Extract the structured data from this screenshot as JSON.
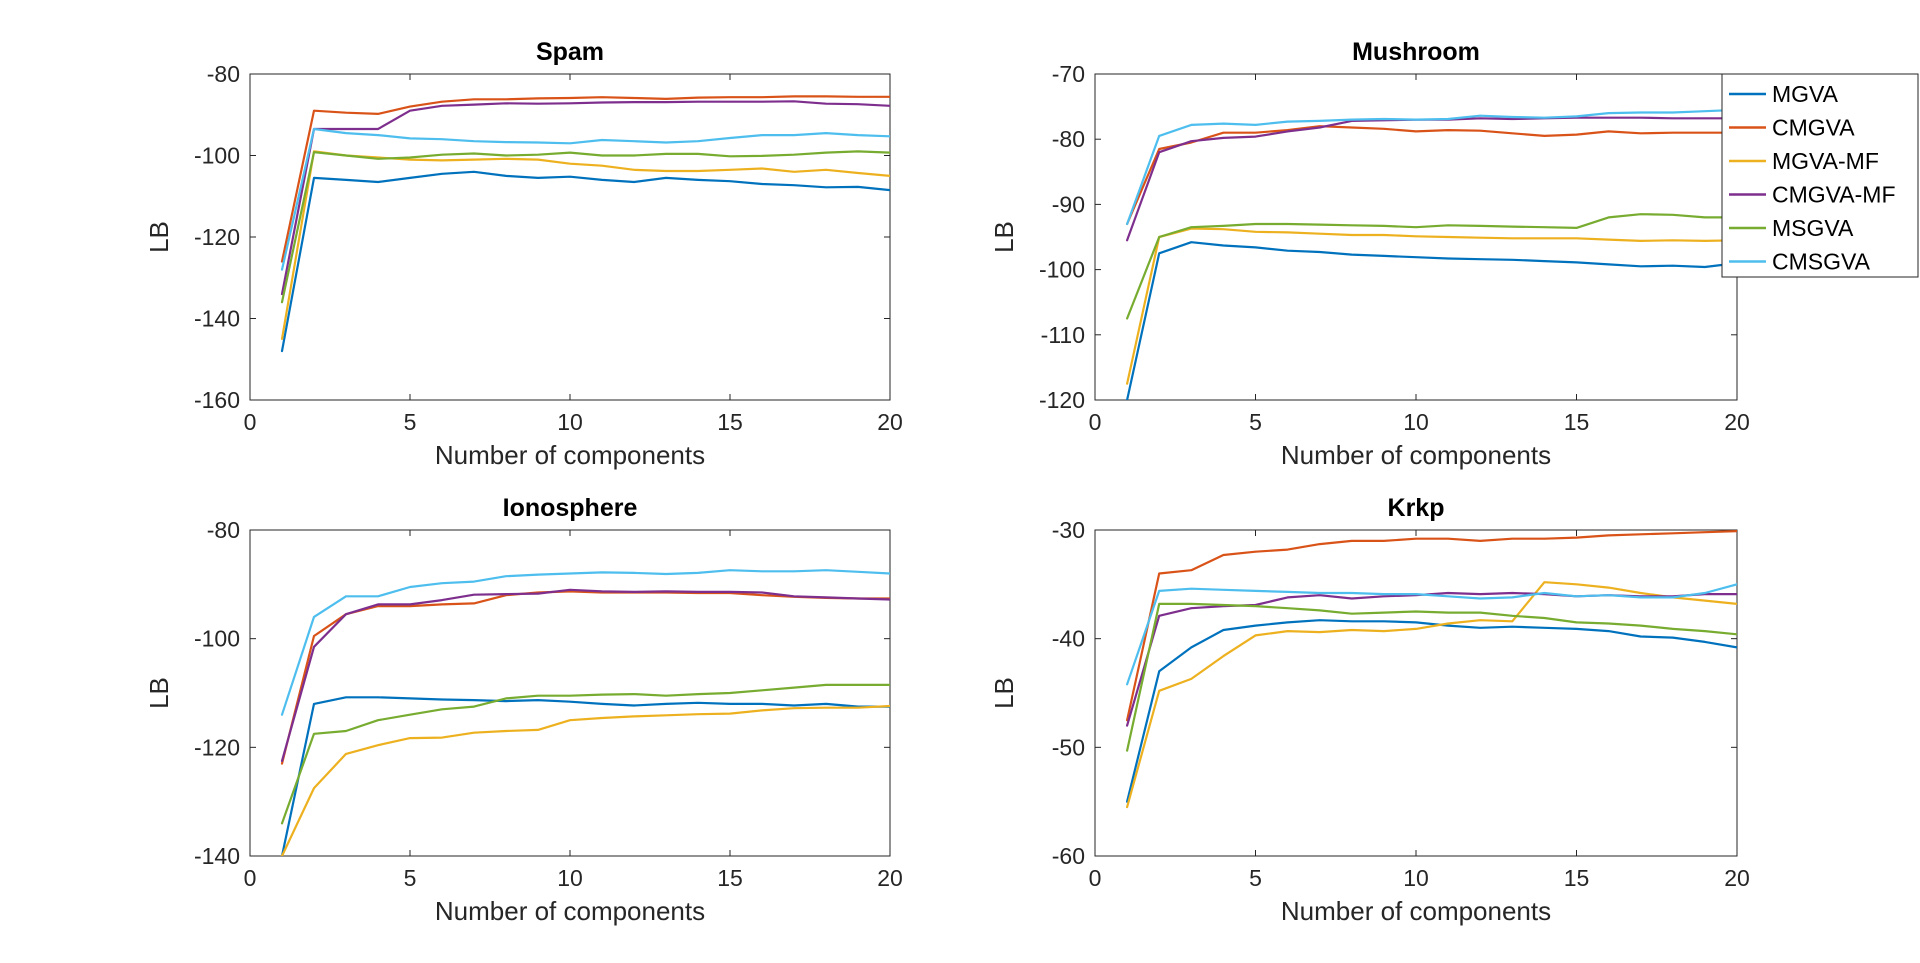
{
  "chart_data": [
    {
      "type": "line",
      "title": "Spam",
      "xlabel": "Number of components",
      "ylabel": "LB",
      "xlim": [
        0,
        20
      ],
      "ylim": [
        -160,
        -80
      ],
      "xticks": [
        0,
        5,
        10,
        15,
        20
      ],
      "yticks": [
        -160,
        -140,
        -120,
        -100,
        -80
      ],
      "x": [
        1,
        2,
        3,
        4,
        5,
        6,
        7,
        8,
        9,
        10,
        11,
        12,
        13,
        14,
        15,
        16,
        17,
        18,
        19,
        20
      ],
      "series": [
        {
          "name": "MGVA",
          "color": "#0072BD",
          "values": [
            -148,
            -105.5,
            -106,
            -106.5,
            -105.5,
            -104.5,
            -104,
            -105,
            -105.5,
            -105.2,
            -106,
            -106.5,
            -105.5,
            -106,
            -106.3,
            -107,
            -107.3,
            -107.8,
            -107.7,
            -108.5
          ]
        },
        {
          "name": "CMGVA",
          "color": "#D95319",
          "values": [
            -126,
            -89,
            -89.5,
            -89.8,
            -88,
            -86.8,
            -86.2,
            -86.2,
            -86,
            -85.9,
            -85.7,
            -85.9,
            -86.1,
            -85.8,
            -85.7,
            -85.7,
            -85.5,
            -85.5,
            -85.6,
            -85.6
          ]
        },
        {
          "name": "MGVA-MF",
          "color": "#EDB120",
          "values": [
            -145,
            -99,
            -100,
            -100.5,
            -101,
            -101.2,
            -101,
            -100.8,
            -101,
            -102,
            -102.5,
            -103.5,
            -103.8,
            -103.8,
            -103.5,
            -103.2,
            -104,
            -103.5,
            -104.3,
            -105
          ]
        },
        {
          "name": "CMGVA-MF",
          "color": "#7E2F8E",
          "values": [
            -134,
            -93.5,
            -93.5,
            -93.5,
            -89,
            -87.8,
            -87.5,
            -87.2,
            -87.3,
            -87.2,
            -87,
            -86.9,
            -86.9,
            -86.8,
            -86.8,
            -86.8,
            -86.7,
            -87.3,
            -87.4,
            -87.8
          ]
        },
        {
          "name": "MSGVA",
          "color": "#77AC30",
          "values": [
            -136,
            -99.2,
            -100,
            -100.8,
            -100.5,
            -99.8,
            -99.5,
            -100,
            -99.8,
            -99.3,
            -100,
            -100,
            -99.6,
            -99.6,
            -100.2,
            -100.1,
            -99.8,
            -99.3,
            -99,
            -99.3
          ]
        },
        {
          "name": "CMSGVA",
          "color": "#4DBEEE",
          "values": [
            -128,
            -93.5,
            -94.5,
            -95,
            -95.8,
            -96,
            -96.5,
            -96.7,
            -96.8,
            -97,
            -96.2,
            -96.5,
            -96.8,
            -96.5,
            -95.7,
            -95,
            -95,
            -94.5,
            -95,
            -95.3
          ]
        }
      ]
    },
    {
      "type": "line",
      "title": "Mushroom",
      "xlabel": "Number of components",
      "ylabel": "LB",
      "xlim": [
        0,
        20
      ],
      "ylim": [
        -120,
        -70
      ],
      "xticks": [
        0,
        5,
        10,
        15,
        20
      ],
      "yticks": [
        -120,
        -110,
        -100,
        -90,
        -80,
        -70
      ],
      "x": [
        1,
        2,
        3,
        4,
        5,
        6,
        7,
        8,
        9,
        10,
        11,
        12,
        13,
        14,
        15,
        16,
        17,
        18,
        19,
        20
      ],
      "series": [
        {
          "name": "MGVA",
          "color": "#0072BD",
          "values": [
            -120,
            -97.5,
            -95.8,
            -96.3,
            -96.6,
            -97.1,
            -97.3,
            -97.7,
            -97.9,
            -98.1,
            -98.3,
            -98.4,
            -98.5,
            -98.7,
            -98.9,
            -99.2,
            -99.5,
            -99.4,
            -99.6,
            -99
          ]
        },
        {
          "name": "CMGVA",
          "color": "#D95319",
          "values": [
            -93,
            -81.5,
            -80.5,
            -79,
            -79,
            -78.6,
            -78,
            -78.2,
            -78.4,
            -78.8,
            -78.6,
            -78.7,
            -79.1,
            -79.5,
            -79.3,
            -78.8,
            -79.1,
            -79,
            -79,
            -79
          ]
        },
        {
          "name": "MGVA-MF",
          "color": "#EDB120",
          "values": [
            -117.5,
            -95,
            -93.7,
            -93.8,
            -94.2,
            -94.3,
            -94.5,
            -94.7,
            -94.7,
            -94.9,
            -95,
            -95.1,
            -95.2,
            -95.2,
            -95.2,
            -95.4,
            -95.6,
            -95.5,
            -95.6,
            -95.5
          ]
        },
        {
          "name": "CMGVA-MF",
          "color": "#7E2F8E",
          "values": [
            -95.5,
            -82,
            -80.3,
            -79.8,
            -79.6,
            -78.8,
            -78.2,
            -77.2,
            -77.1,
            -77,
            -77,
            -76.8,
            -76.9,
            -76.8,
            -76.7,
            -76.7,
            -76.7,
            -76.8,
            -76.8,
            -76.8
          ]
        },
        {
          "name": "MSGVA",
          "color": "#77AC30",
          "values": [
            -107.5,
            -95,
            -93.5,
            -93.3,
            -93,
            -93,
            -93.1,
            -93.2,
            -93.3,
            -93.5,
            -93.2,
            -93.3,
            -93.4,
            -93.5,
            -93.6,
            -92,
            -91.5,
            -91.6,
            -92,
            -92
          ]
        },
        {
          "name": "CMSGVA",
          "color": "#4DBEEE",
          "values": [
            -93,
            -79.5,
            -77.8,
            -77.6,
            -77.8,
            -77.3,
            -77.2,
            -77,
            -76.9,
            -77,
            -76.9,
            -76.4,
            -76.6,
            -76.7,
            -76.5,
            -76,
            -75.9,
            -75.9,
            -75.7,
            -75.5
          ]
        }
      ]
    },
    {
      "type": "line",
      "title": "Ionosphere",
      "xlabel": "Number of components",
      "ylabel": "LB",
      "xlim": [
        0,
        20
      ],
      "ylim": [
        -140,
        -80
      ],
      "xticks": [
        0,
        5,
        10,
        15,
        20
      ],
      "yticks": [
        -140,
        -120,
        -100,
        -80
      ],
      "x": [
        1,
        2,
        3,
        4,
        5,
        6,
        7,
        8,
        9,
        10,
        11,
        12,
        13,
        14,
        15,
        16,
        17,
        18,
        19,
        20
      ],
      "series": [
        {
          "name": "MGVA",
          "color": "#0072BD",
          "values": [
            -140,
            -112,
            -110.8,
            -110.8,
            -111,
            -111.2,
            -111.3,
            -111.5,
            -111.3,
            -111.6,
            -112,
            -112.3,
            -112,
            -111.8,
            -112,
            -112,
            -112.3,
            -112,
            -112.5,
            -112.5
          ]
        },
        {
          "name": "CMGVA",
          "color": "#D95319",
          "values": [
            -123,
            -99.5,
            -95.5,
            -94,
            -94,
            -93.7,
            -93.5,
            -92,
            -91.5,
            -91.3,
            -91.5,
            -91.5,
            -91.5,
            -91.6,
            -91.6,
            -92,
            -92.3,
            -92.5,
            -92.6,
            -92.6
          ]
        },
        {
          "name": "MGVA-MF",
          "color": "#EDB120",
          "values": [
            -140,
            -127.5,
            -121.2,
            -119.6,
            -118.3,
            -118.2,
            -117.3,
            -117,
            -116.8,
            -115,
            -114.6,
            -114.3,
            -114.1,
            -113.9,
            -113.8,
            -113.2,
            -112.8,
            -112.7,
            -112.7,
            -112.4
          ]
        },
        {
          "name": "CMGVA-MF",
          "color": "#7E2F8E",
          "values": [
            -122.5,
            -101.5,
            -95.5,
            -93.7,
            -93.7,
            -92.9,
            -91.9,
            -91.8,
            -91.7,
            -91,
            -91.3,
            -91.4,
            -91.3,
            -91.4,
            -91.4,
            -91.5,
            -92.2,
            -92.4,
            -92.6,
            -92.8
          ]
        },
        {
          "name": "MSGVA",
          "color": "#77AC30",
          "values": [
            -134,
            -117.5,
            -117,
            -115,
            -114,
            -113,
            -112.5,
            -111,
            -110.5,
            -110.5,
            -110.3,
            -110.2,
            -110.5,
            -110.2,
            -110,
            -109.5,
            -109,
            -108.5,
            -108.5,
            -108.5
          ]
        },
        {
          "name": "CMSGVA",
          "color": "#4DBEEE",
          "values": [
            -114,
            -96,
            -92.2,
            -92.2,
            -90.5,
            -89.8,
            -89.5,
            -88.5,
            -88.2,
            -88,
            -87.8,
            -87.9,
            -88.1,
            -87.9,
            -87.4,
            -87.6,
            -87.6,
            -87.4,
            -87.7,
            -88
          ]
        }
      ]
    },
    {
      "type": "line",
      "title": "Krkp",
      "xlabel": "Number of components",
      "ylabel": "LB",
      "xlim": [
        0,
        20
      ],
      "ylim": [
        -60,
        -30
      ],
      "xticks": [
        0,
        5,
        10,
        15,
        20
      ],
      "yticks": [
        -60,
        -50,
        -40,
        -30
      ],
      "x": [
        1,
        2,
        3,
        4,
        5,
        6,
        7,
        8,
        9,
        10,
        11,
        12,
        13,
        14,
        15,
        16,
        17,
        18,
        19,
        20
      ],
      "series": [
        {
          "name": "MGVA",
          "color": "#0072BD",
          "values": [
            -55,
            -43,
            -40.8,
            -39.2,
            -38.8,
            -38.5,
            -38.3,
            -38.4,
            -38.4,
            -38.5,
            -38.8,
            -39,
            -38.9,
            -39,
            -39.1,
            -39.3,
            -39.8,
            -39.9,
            -40.3,
            -40.8
          ]
        },
        {
          "name": "CMGVA",
          "color": "#D95319",
          "values": [
            -47.5,
            -34,
            -33.7,
            -32.3,
            -32,
            -31.8,
            -31.3,
            -31,
            -31,
            -30.8,
            -30.8,
            -31,
            -30.8,
            -30.8,
            -30.7,
            -30.5,
            -30.4,
            -30.3,
            -30.2,
            -30.1
          ]
        },
        {
          "name": "MGVA-MF",
          "color": "#EDB120",
          "values": [
            -55.5,
            -44.8,
            -43.7,
            -41.6,
            -39.7,
            -39.3,
            -39.4,
            -39.2,
            -39.3,
            -39.1,
            -38.6,
            -38.3,
            -38.4,
            -34.8,
            -35,
            -35.3,
            -35.8,
            -36.2,
            -36.5,
            -36.8
          ]
        },
        {
          "name": "CMGVA-MF",
          "color": "#7E2F8E",
          "values": [
            -48,
            -37.9,
            -37.2,
            -37,
            -36.9,
            -36.2,
            -36,
            -36.3,
            -36.1,
            -36,
            -35.8,
            -35.9,
            -35.8,
            -35.9,
            -36.1,
            -36,
            -36.1,
            -36.1,
            -35.9,
            -35.9
          ]
        },
        {
          "name": "MSGVA",
          "color": "#77AC30",
          "values": [
            -50.3,
            -36.8,
            -36.8,
            -36.9,
            -37,
            -37.2,
            -37.4,
            -37.7,
            -37.6,
            -37.5,
            -37.6,
            -37.6,
            -37.9,
            -38.1,
            -38.5,
            -38.6,
            -38.8,
            -39.1,
            -39.3,
            -39.6
          ]
        },
        {
          "name": "CMSGVA",
          "color": "#4DBEEE",
          "values": [
            -44.2,
            -35.6,
            -35.4,
            -35.5,
            -35.6,
            -35.7,
            -35.8,
            -35.8,
            -35.9,
            -35.9,
            -36.1,
            -36.3,
            -36.2,
            -35.8,
            -36.1,
            -36,
            -36.2,
            -36.2,
            -35.8,
            -35
          ]
        }
      ]
    }
  ],
  "legend": {
    "placement": "right of Mushroom panel",
    "entries": [
      {
        "label": "MGVA",
        "color": "#0072BD"
      },
      {
        "label": "CMGVA",
        "color": "#D95319"
      },
      {
        "label": "MGVA-MF",
        "color": "#EDB120"
      },
      {
        "label": "CMGVA-MF",
        "color": "#7E2F8E"
      },
      {
        "label": "MSGVA",
        "color": "#77AC30"
      },
      {
        "label": "CMSGVA",
        "color": "#4DBEEE"
      }
    ]
  }
}
